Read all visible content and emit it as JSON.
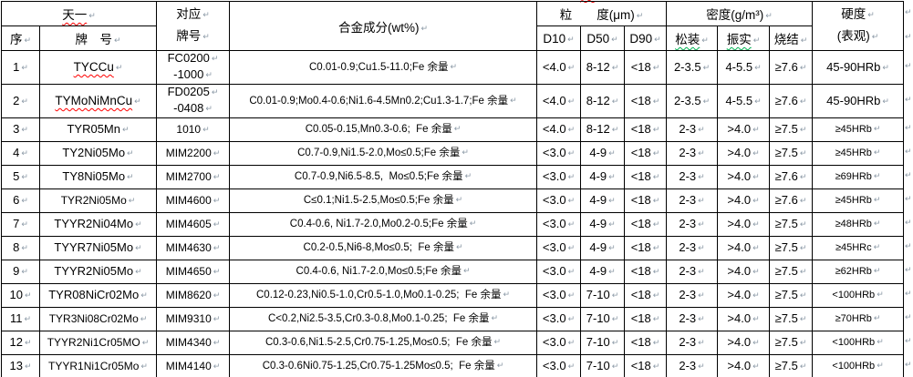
{
  "marks": {
    "p": "↵"
  },
  "colors": {
    "border": "#000000",
    "text": "#000000",
    "spellcheck_red": "#ff0000",
    "grammar_green": "#00b050",
    "paragraph_mark": "#8b99a6"
  },
  "table": {
    "header": {
      "tianyi": "天一",
      "xu": "序",
      "paihao": "牌　号",
      "ref_line1": "对应",
      "ref_line2": "牌号",
      "composition": "合金成分(wt%)",
      "particle": "粒　　度(μm)",
      "d10": "D10",
      "d50": "D50",
      "d90": "D90",
      "density": "密度(g/m³)",
      "loose": "松装",
      "tap": "振实",
      "sinter": "烧结",
      "hardness_line1": "硬度",
      "hardness_line2": "(表观)"
    },
    "rows": [
      {
        "no": "1",
        "brand": "TYCCu",
        "ms": true,
        "tall": true,
        "ref": [
          "FC0200",
          "-1000"
        ],
        "comp": "C0.01-0.9;Cu1.5-11.0;Fe 余量",
        "d10": "<4.0",
        "d50": "8-12",
        "d90": "<18",
        "loose": "2-3.5",
        "tap": "4-5.5",
        "sinter": "≥7.6",
        "hard": "45-90HRb"
      },
      {
        "no": "2",
        "brand": "TYMoNiMnCu",
        "ms": true,
        "tall": true,
        "ref": [
          "FD0205",
          "-0408"
        ],
        "comp": "C0.01-0.9;Mo0.4-0.6;Ni1.6-4.5Mn0.2;Cu1.3-1.7;Fe 余量",
        "d10": "<4.0",
        "d50": "8-12",
        "d90": "<18",
        "loose": "2-3.5",
        "tap": "4-5.5",
        "sinter": "≥7.6",
        "hard": "45-90HRb"
      },
      {
        "no": "3",
        "brand": "TYR05Mn",
        "ref": [
          "1010"
        ],
        "comp": "C0.05-0.15,Mn0.3-0.6;  Fe 余量",
        "d10": "<4.0",
        "d50": "8-12",
        "d90": "<18",
        "loose": "2-3",
        "tap": ">4.0",
        "sinter": "≥7.5",
        "hard": "≥45HRb"
      },
      {
        "no": "4",
        "brand": "TY2Ni05Mo",
        "ref": [
          "MIM2200"
        ],
        "comp": "C0.7-0.9,Ni1.5-2.0,Mo≤0.5;Fe 余量",
        "d10": "<3.0",
        "d50": "4-9",
        "d90": "<18",
        "loose": "2-3",
        "tap": ">4.0",
        "sinter": "≥7.5",
        "hard": "≥45HRb"
      },
      {
        "no": "5",
        "brand": "TY8Ni05Mo",
        "ref": [
          "MIM2700"
        ],
        "comp": "C0.7-0.9,Ni6.5-8.5,  Mo≤0.5;Fe 余量",
        "d10": "<3.0",
        "d50": "4-9",
        "d90": "<18",
        "loose": "2-3",
        "tap": ">4.0",
        "sinter": "≥7.6",
        "hard": "≥69HRb"
      },
      {
        "no": "6",
        "brand": "TYR2Ni05Mo",
        "bs": true,
        "ref": [
          "MIM4600"
        ],
        "comp": "C≤0.1;Ni1.5-2.5,Mo≤0.5;Fe 余量",
        "d10": "<3.0",
        "d50": "4-9",
        "d90": "<18",
        "loose": "2-3",
        "tap": ">4.0",
        "sinter": "≥7.6",
        "hard": "≥45HRb"
      },
      {
        "no": "7",
        "brand": "TYYR2Ni04Mo",
        "ref": [
          "MIM4605"
        ],
        "comp": "C0.4-0.6, Ni1.7-2.0,Mo0.2-0.5;Fe 余量",
        "d10": "<3.0",
        "d50": "4-9",
        "d90": "<18",
        "loose": "2-3",
        "tap": ">4.0",
        "sinter": "≥7.5",
        "hard": "≥48HRb"
      },
      {
        "no": "8",
        "brand": "TYYR7Ni05Mo",
        "ref": [
          "MIM4630"
        ],
        "comp": "C0.2-0.5,Ni6-8,Mo≤0.5;  Fe 余量",
        "d10": "<3.0",
        "d50": "4-9",
        "d90": "<18",
        "loose": "2-3",
        "tap": ">4.0",
        "sinter": "≥7.5",
        "hard": "≥45HRc"
      },
      {
        "no": "9",
        "brand": "TYYR2Ni05Mo",
        "ref": [
          "MIM4650"
        ],
        "comp": "C0.4-0.6, Ni1.7-2.0,Mo≤0.5;Fe 余量",
        "d10": "<3.0",
        "d50": "4-9",
        "d90": "<18",
        "loose": "2-3",
        "tap": ">4.0",
        "sinter": "≥7.5",
        "hard": "≥62HRb"
      },
      {
        "no": "10",
        "brand": "TYR08NiCr02Mo",
        "ref": [
          "MIM8620"
        ],
        "comp": "C0.12-0.23,Ni0.5-1.0,Cr0.5-1.0,Mo0.1-0.25;  Fe 余量",
        "d10": "<3.0",
        "d50": "7-10",
        "d90": "<18",
        "loose": "2-3",
        "tap": ">4.0",
        "sinter": "≥7.5",
        "hard": "<100HRb"
      },
      {
        "no": "11",
        "brand": "TYR3Ni08Cr02Mo",
        "bs": true,
        "ref": [
          "MIM9310"
        ],
        "comp": "C<0.2,Ni2.5-3.5,Cr0.3-0.8,Mo0.1-0.25;  Fe 余量",
        "d10": "<3.0",
        "d50": "7-10",
        "d90": "<18",
        "loose": "2-3",
        "tap": ">4.0",
        "sinter": "≥7.5",
        "hard": "≥70HRb"
      },
      {
        "no": "12",
        "brand": "TYYR2Ni1Cr05MO",
        "bs": true,
        "ref": [
          "MIM4340"
        ],
        "comp": "C0.3-0.6,Ni1.5-2.5,Cr0.75-1.25,Mo≤0.5;  Fe 余量",
        "d10": "<3.0",
        "d50": "7-10",
        "d90": "<18",
        "loose": "2-3",
        "tap": ">4.0",
        "sinter": "≥7.5",
        "hard": "<100HRb"
      },
      {
        "no": "13",
        "brand": "TYYR1Ni1Cr05Mo",
        "bs": true,
        "ref": [
          "MIM4140"
        ],
        "comp": "C0.3-0.6Ni0.75-1.25,Cr0.75-1.25Mo≤0.5;  Fe 余量",
        "d10": "<3.0",
        "d50": "7-10",
        "d90": "<18",
        "loose": "2-3",
        "tap": ">4.0",
        "sinter": "≥7.5",
        "hard": "<100HRb"
      }
    ]
  }
}
